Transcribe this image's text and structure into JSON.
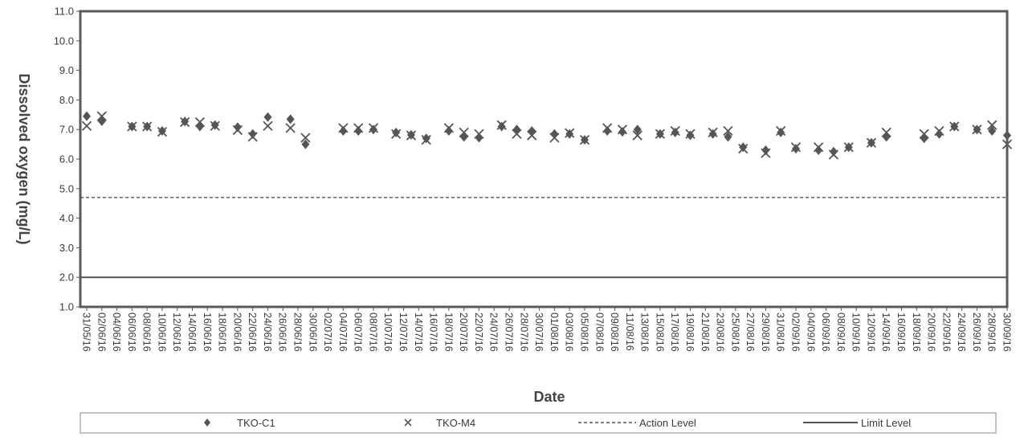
{
  "chart_data": {
    "type": "scatter",
    "xlabel": "Date",
    "ylabel": "Dissolved oxygen (mg/L)",
    "ylim": [
      1.0,
      11.0
    ],
    "yticks": [
      "1.0",
      "2.0",
      "3.0",
      "4.0",
      "5.0",
      "6.0",
      "7.0",
      "8.0",
      "9.0",
      "10.0",
      "11.0"
    ],
    "xlim": [
      "31/05/16",
      "30/09/16"
    ],
    "xticks": [
      "31/05/16",
      "02/06/16",
      "04/06/16",
      "06/06/16",
      "08/06/16",
      "10/06/16",
      "12/06/16",
      "14/06/16",
      "16/06/16",
      "18/06/16",
      "20/06/16",
      "22/06/16",
      "24/06/16",
      "26/06/16",
      "28/06/16",
      "30/06/16",
      "02/07/16",
      "04/07/16",
      "06/07/16",
      "08/07/16",
      "10/07/16",
      "12/07/16",
      "14/07/16",
      "16/07/16",
      "18/07/16",
      "20/07/16",
      "22/07/16",
      "24/07/16",
      "26/07/16",
      "28/07/16",
      "30/07/16",
      "01/08/16",
      "03/08/16",
      "05/08/16",
      "07/08/16",
      "09/08/16",
      "11/08/16",
      "13/08/16",
      "15/08/16",
      "17/08/16",
      "19/08/16",
      "21/08/16",
      "23/08/16",
      "25/08/16",
      "27/08/16",
      "29/08/16",
      "31/08/16",
      "02/09/16",
      "04/09/16",
      "06/09/16",
      "08/09/16",
      "10/09/16",
      "12/09/16",
      "14/09/16",
      "16/09/16",
      "18/09/16",
      "20/09/16",
      "22/09/16",
      "24/09/16",
      "26/09/16",
      "28/09/16",
      "30/09/16"
    ],
    "grid": false,
    "legend_position": "bottom",
    "series": [
      {
        "name": "TKO-C1",
        "marker": "diamond",
        "color": "#555555",
        "points": [
          [
            "31/05/16",
            7.45
          ],
          [
            "02/06/16",
            7.28
          ],
          [
            "06/06/16",
            7.1
          ],
          [
            "08/06/16",
            7.1
          ],
          [
            "10/06/16",
            6.95
          ],
          [
            "13/06/16",
            7.27
          ],
          [
            "15/06/16",
            7.1
          ],
          [
            "17/06/16",
            7.15
          ],
          [
            "20/06/16",
            7.08
          ],
          [
            "22/06/16",
            6.85
          ],
          [
            "24/06/16",
            7.42
          ],
          [
            "27/06/16",
            7.35
          ],
          [
            "29/06/16",
            6.5
          ],
          [
            "04/07/16",
            6.95
          ],
          [
            "06/07/16",
            6.95
          ],
          [
            "08/07/16",
            7.0
          ],
          [
            "11/07/16",
            6.9
          ],
          [
            "13/07/16",
            6.82
          ],
          [
            "15/07/16",
            6.7
          ],
          [
            "18/07/16",
            6.95
          ],
          [
            "20/07/16",
            6.75
          ],
          [
            "22/07/16",
            6.72
          ],
          [
            "25/07/16",
            7.1
          ],
          [
            "27/07/16",
            7.0
          ],
          [
            "29/07/16",
            6.95
          ],
          [
            "01/08/16",
            6.85
          ],
          [
            "03/08/16",
            6.85
          ],
          [
            "05/08/16",
            6.65
          ],
          [
            "08/08/16",
            6.95
          ],
          [
            "10/08/16",
            6.92
          ],
          [
            "12/08/16",
            7.0
          ],
          [
            "15/08/16",
            6.85
          ],
          [
            "17/08/16",
            6.9
          ],
          [
            "19/08/16",
            6.8
          ],
          [
            "22/08/16",
            6.85
          ],
          [
            "24/08/16",
            6.75
          ],
          [
            "26/08/16",
            6.4
          ],
          [
            "29/08/16",
            6.3
          ],
          [
            "31/08/16",
            6.9
          ],
          [
            "02/09/16",
            6.35
          ],
          [
            "05/09/16",
            6.3
          ],
          [
            "07/09/16",
            6.25
          ],
          [
            "09/09/16",
            6.4
          ],
          [
            "12/09/16",
            6.55
          ],
          [
            "14/09/16",
            6.75
          ],
          [
            "19/09/16",
            6.7
          ],
          [
            "21/09/16",
            6.85
          ],
          [
            "23/09/16",
            7.1
          ],
          [
            "26/09/16",
            7.0
          ],
          [
            "28/09/16",
            6.95
          ],
          [
            "30/09/16",
            6.8
          ]
        ]
      },
      {
        "name": "TKO-M4",
        "marker": "x",
        "color": "#555555",
        "points": [
          [
            "31/05/16",
            7.12
          ],
          [
            "02/06/16",
            7.45
          ],
          [
            "06/06/16",
            7.1
          ],
          [
            "08/06/16",
            7.1
          ],
          [
            "10/06/16",
            6.92
          ],
          [
            "13/06/16",
            7.25
          ],
          [
            "15/06/16",
            7.25
          ],
          [
            "17/06/16",
            7.12
          ],
          [
            "20/06/16",
            6.98
          ],
          [
            "22/06/16",
            6.75
          ],
          [
            "24/06/16",
            7.12
          ],
          [
            "27/06/16",
            7.05
          ],
          [
            "29/06/16",
            6.72
          ],
          [
            "04/07/16",
            7.05
          ],
          [
            "06/07/16",
            7.05
          ],
          [
            "08/07/16",
            7.05
          ],
          [
            "11/07/16",
            6.85
          ],
          [
            "13/07/16",
            6.8
          ],
          [
            "15/07/16",
            6.65
          ],
          [
            "18/07/16",
            7.05
          ],
          [
            "20/07/16",
            6.9
          ],
          [
            "22/07/16",
            6.85
          ],
          [
            "25/07/16",
            7.15
          ],
          [
            "27/07/16",
            6.85
          ],
          [
            "29/07/16",
            6.8
          ],
          [
            "01/08/16",
            6.72
          ],
          [
            "03/08/16",
            6.88
          ],
          [
            "05/08/16",
            6.65
          ],
          [
            "08/08/16",
            7.05
          ],
          [
            "10/08/16",
            7.0
          ],
          [
            "12/08/16",
            6.8
          ],
          [
            "15/08/16",
            6.85
          ],
          [
            "17/08/16",
            6.95
          ],
          [
            "19/08/16",
            6.85
          ],
          [
            "22/08/16",
            6.9
          ],
          [
            "24/08/16",
            6.95
          ],
          [
            "26/08/16",
            6.35
          ],
          [
            "29/08/16",
            6.2
          ],
          [
            "31/08/16",
            6.95
          ],
          [
            "02/09/16",
            6.4
          ],
          [
            "05/09/16",
            6.4
          ],
          [
            "07/09/16",
            6.15
          ],
          [
            "09/09/16",
            6.4
          ],
          [
            "12/09/16",
            6.55
          ],
          [
            "14/09/16",
            6.9
          ],
          [
            "19/09/16",
            6.85
          ],
          [
            "21/09/16",
            6.95
          ],
          [
            "23/09/16",
            7.1
          ],
          [
            "26/09/16",
            7.0
          ],
          [
            "28/09/16",
            7.15
          ],
          [
            "30/09/16",
            6.5
          ]
        ]
      }
    ],
    "reference_lines": [
      {
        "name": "Action Level",
        "value": 4.7,
        "style": "dashed",
        "color": "#555555"
      },
      {
        "name": "Limit Level",
        "value": 2.0,
        "style": "solid",
        "color": "#555555"
      }
    ]
  }
}
